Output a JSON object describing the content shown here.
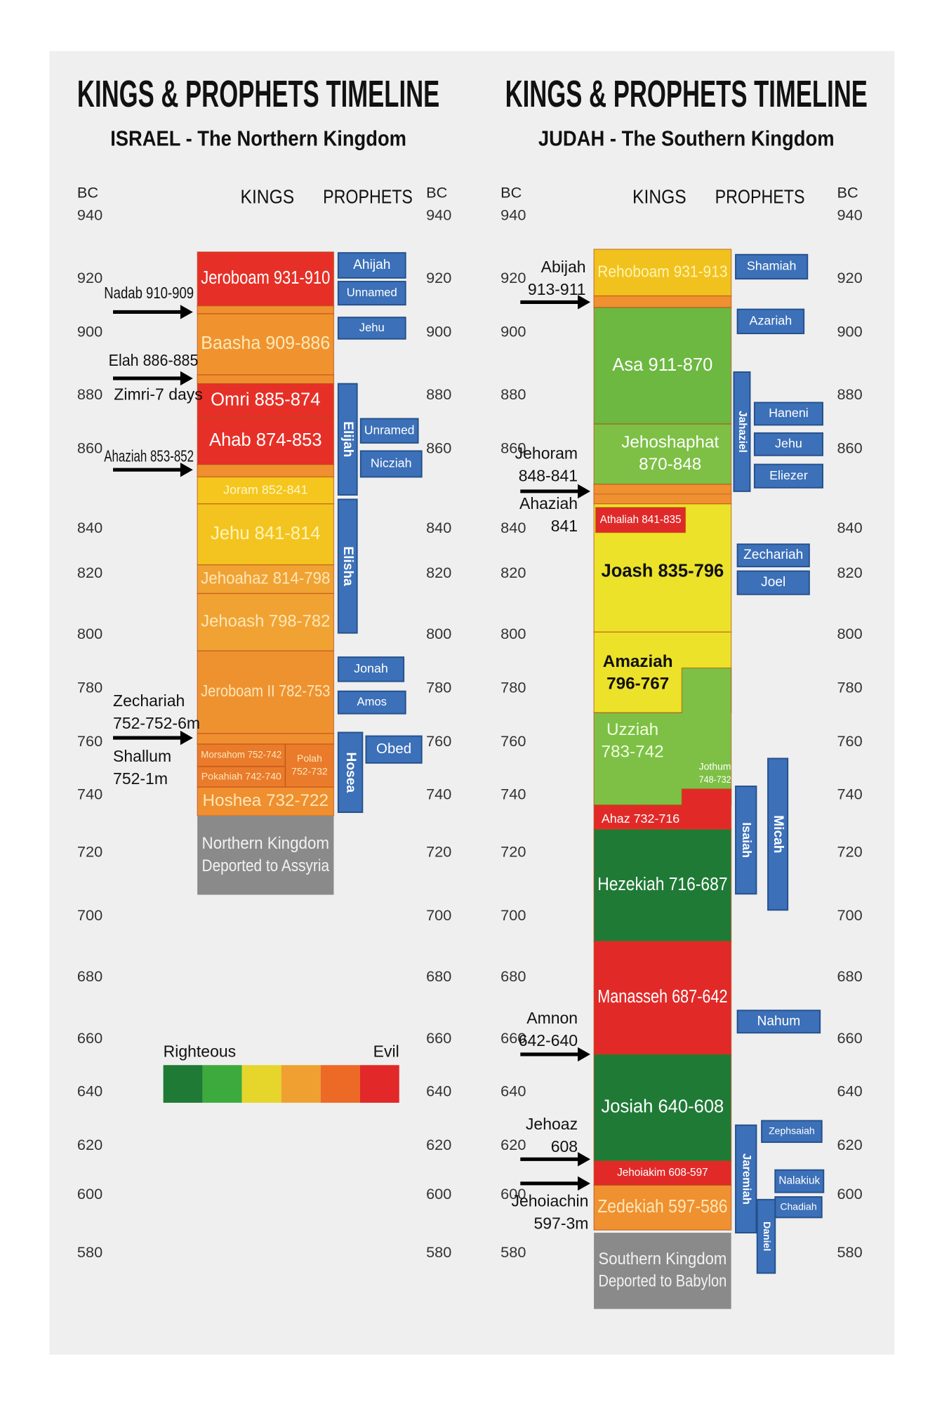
{
  "panels": [
    {
      "title": "KINGS & PROPHETS TIMELINE",
      "subtitle": "ISRAEL - The Northern Kingdom",
      "bc": "BC",
      "kings_header": "KINGS",
      "prophets_header": "PROPHETS",
      "years": [
        "940",
        "920",
        "900",
        "880",
        "860",
        "840",
        "820",
        "800",
        "780",
        "760",
        "740",
        "720",
        "700",
        "680",
        "660",
        "640",
        "620",
        "600",
        "580"
      ],
      "kings": [
        {
          "lines": [
            "Jeroboam 931-910"
          ],
          "color": "#e63027"
        },
        {
          "lines": [
            "Baasha 909-886"
          ],
          "color": "#f0932f"
        },
        {
          "lines": [
            "Omri 885-874"
          ],
          "color": "#e63027"
        },
        {
          "lines": [
            "Ahab 874-853"
          ],
          "color": "#e63027"
        },
        {
          "lines": [
            "Joram 852-841"
          ],
          "color": "#f5c61e"
        },
        {
          "lines": [
            "Jehu 841-814"
          ],
          "color": "#f3c41f"
        },
        {
          "lines": [
            "Jehoahaz 814-798"
          ],
          "color": "#f0a333"
        },
        {
          "lines": [
            "Jehoash 798-782"
          ],
          "color": "#f0a333"
        },
        {
          "lines": [
            "Jeroboam II 782-753"
          ],
          "color": "#ee9230"
        },
        {
          "lines": [
            "Morsahom 752-742"
          ],
          "color": "#e97b2b"
        },
        {
          "lines": [
            "Pokahiah 742-740"
          ],
          "color": "#e97b2b"
        },
        {
          "lines": [
            "Polah",
            "752-732"
          ],
          "color": "#e97b2b"
        },
        {
          "lines": [
            "Hoshea 732-722"
          ],
          "color": "#ef8f2f"
        }
      ],
      "prophets": [
        "Ahijah",
        "Unnamed",
        "Jehu",
        "Elijah",
        "Unramed",
        "Nicziah",
        "Elisha",
        "Jonah",
        "Amos",
        "Hosea",
        "Obed"
      ],
      "notes": [
        [
          "Nadab 910-909"
        ],
        [
          "Elah 886-885"
        ],
        [
          "Zimri-7 days"
        ],
        [
          "Ahaziah 853-852"
        ],
        [
          "Zechariah",
          "752-752-6m"
        ],
        [
          "Shallum",
          "752-1m"
        ]
      ],
      "deported": [
        "Northern Kingdom",
        "Deported to Assyria"
      ]
    },
    {
      "title": "KINGS & PROPHETS TIMELINE",
      "subtitle": "JUDAH - The Southern Kingdom",
      "bc": "BC",
      "kings_header": "KINGS",
      "prophets_header": "PROPHETS",
      "years": [
        "940",
        "920",
        "900",
        "880",
        "860",
        "840",
        "820",
        "800",
        "780",
        "760",
        "740",
        "720",
        "700",
        "680",
        "660",
        "640",
        "620",
        "600",
        "580"
      ],
      "kings": [
        {
          "lines": [
            "Rehoboam 931-913"
          ],
          "color": "#f1c21e"
        },
        {
          "lines": [
            "Asa 911-870"
          ],
          "color": "#6cb840"
        },
        {
          "lines": [
            "Jehoshaphat",
            "870-848"
          ],
          "color": "#7dc045"
        },
        {
          "lines": [
            "Joash 835-796"
          ],
          "color": "#ece22a"
        },
        {
          "lines": [
            "Athaliah 841-835"
          ],
          "color": "#e02a2a"
        },
        {
          "lines": [
            "Amaziah",
            "796-767"
          ],
          "color": "#ece22a"
        },
        {
          "lines": [
            "Uzziah",
            "783-742"
          ],
          "color": "#7dc045"
        },
        {
          "lines": [
            "Jothum",
            "748-732"
          ]
        },
        {
          "lines": [
            "Ahaz 732-716"
          ],
          "color": "#e12a28"
        },
        {
          "lines": [
            "Hezekiah 716-687"
          ],
          "color": "#1f7a36"
        },
        {
          "lines": [
            "Manasseh 687-642"
          ],
          "color": "#e12a28"
        },
        {
          "lines": [
            "Josiah 640-608"
          ],
          "color": "#1f7a36"
        },
        {
          "lines": [
            "Jehoiakim 608-597"
          ],
          "color": "#e12a28"
        },
        {
          "lines": [
            "Zedekiah 597-586"
          ],
          "color": "#ef9130"
        }
      ],
      "prophets": [
        "Shamiah",
        "Azariah",
        "Jahaziel",
        "Haneni",
        "Jehu",
        "Eliezer",
        "Zechariah",
        "Joel",
        "Isaiah",
        "Micah",
        "Nahum",
        "Zephsaiah",
        "Jaremiah",
        "Nalakiuk",
        "Chadiah",
        "Daniel"
      ],
      "notes": [
        [
          "Abijah",
          "913-911"
        ],
        [
          "Jehoram",
          "848-841"
        ],
        [
          "Ahaziah",
          "841"
        ],
        [
          "Amnon",
          "642-640"
        ],
        [
          "Jehoaz",
          "608"
        ],
        [
          "Jehoiachin",
          "597-3m"
        ]
      ],
      "deported": [
        "Southern Kingdom",
        "Deported to Babylon"
      ]
    }
  ],
  "legend": {
    "left": "Righteous",
    "right": "Evil",
    "colors": [
      "#1e7a35",
      "#3daa3d",
      "#e6d52a",
      "#f0a030",
      "#ec6a25",
      "#e22828"
    ]
  }
}
